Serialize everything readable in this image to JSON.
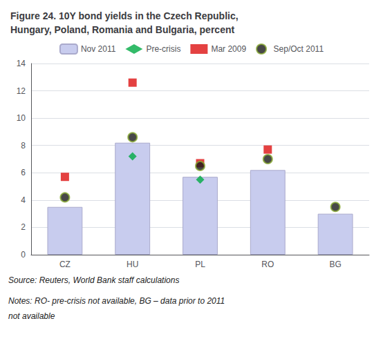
{
  "chart_data": {
    "type": "bar",
    "title": "Figure 24. 10Y bond yields in the Czech Republic,\nHungary, Poland, Romania and Bulgaria, percent",
    "categories": [
      "CZ",
      "HU",
      "PL",
      "RO",
      "BG"
    ],
    "series": [
      {
        "name": "Nov 2011",
        "type": "bar",
        "color": "#c8ccee",
        "values": [
          3.5,
          8.2,
          5.7,
          6.2,
          3.0
        ]
      },
      {
        "name": "Pre-crisis",
        "type": "scatter",
        "marker": "diamond",
        "color": "#00aa44",
        "values": [
          null,
          7.2,
          5.5,
          null,
          null
        ]
      },
      {
        "name": "Mar 2009",
        "type": "scatter",
        "marker": "square",
        "color": "#dd1111",
        "values": [
          5.7,
          12.6,
          6.7,
          7.7,
          null
        ]
      },
      {
        "name": "Sep/Oct 2011",
        "type": "scatter",
        "marker": "circle",
        "color": "#1a1a1a",
        "values": [
          4.2,
          8.6,
          6.5,
          7.0,
          3.5
        ]
      }
    ],
    "ylim": [
      0,
      14
    ],
    "yticks": [
      0,
      2,
      4,
      6,
      8,
      10,
      12,
      14
    ],
    "grid": true,
    "legend": "top",
    "annotations": [
      "Source: Reuters, World Bank staff calculations",
      "Notes: RO- pre-crisis not available, BG – data prior to 2011",
      "not available"
    ]
  }
}
